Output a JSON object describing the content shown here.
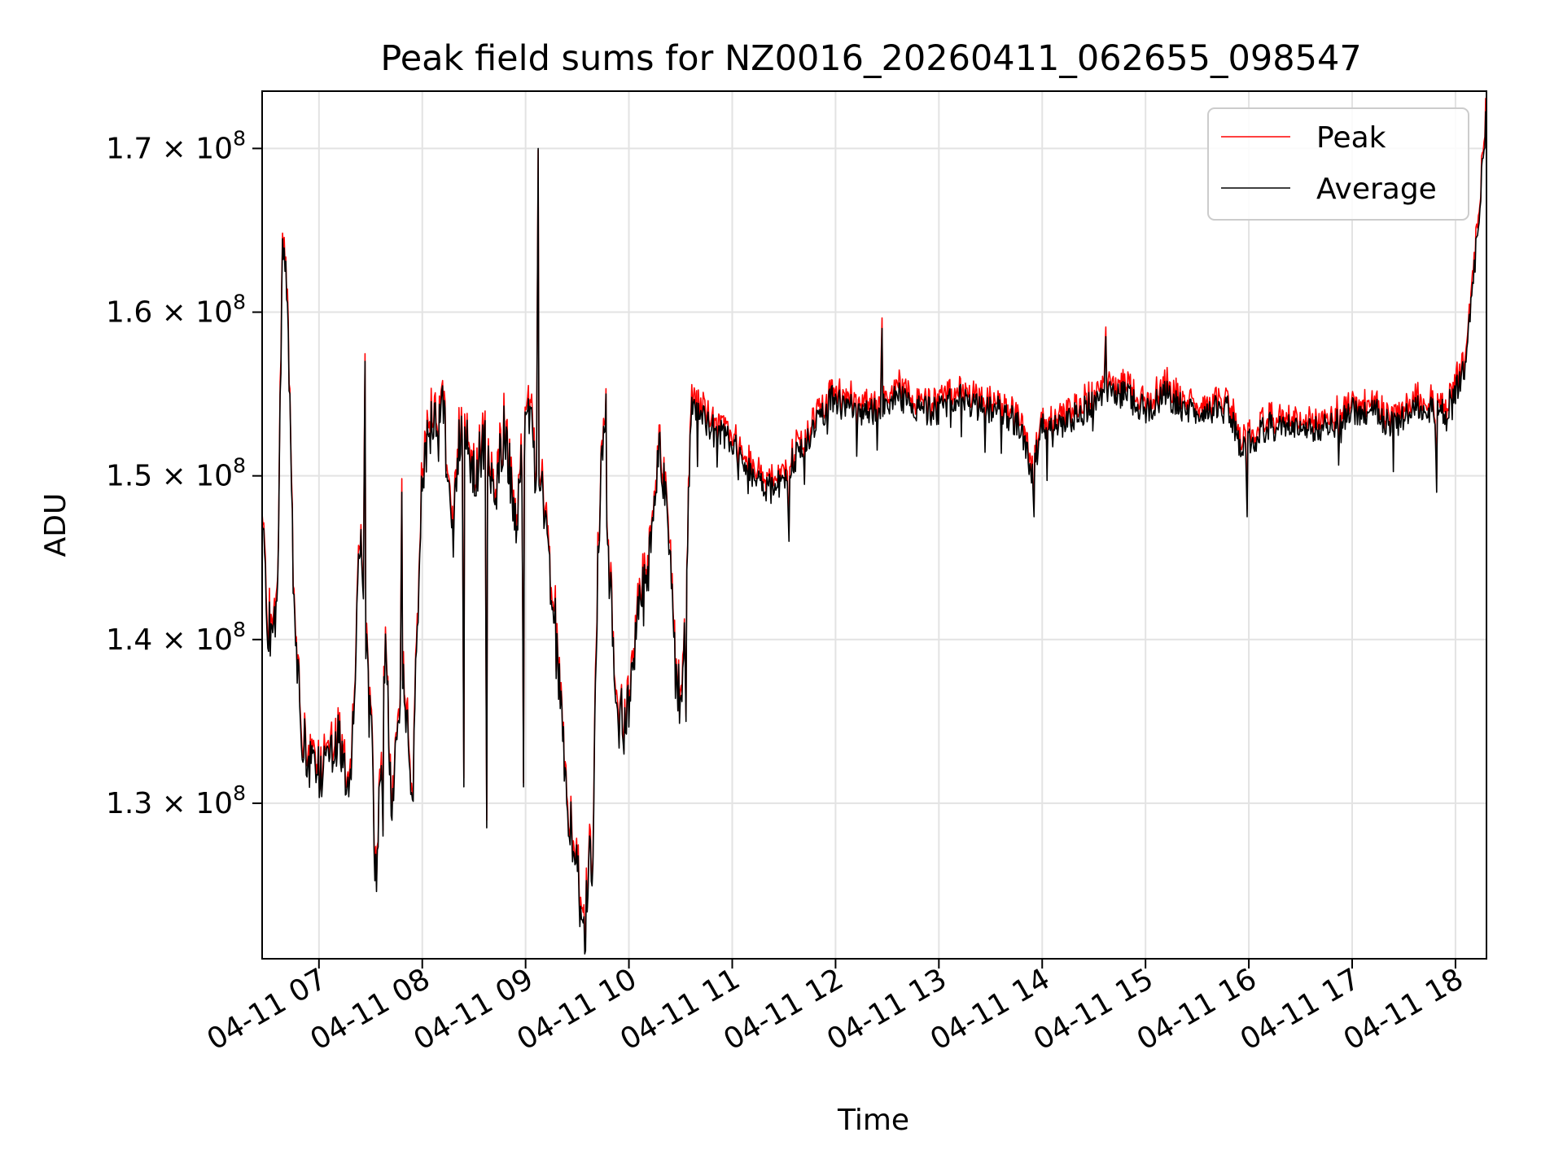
{
  "chart_data": {
    "type": "line",
    "title": "Peak field sums for NZ0016_20260411_062655_098547",
    "xlabel": "Time",
    "ylabel": "ADU",
    "xlim": [
      6.45,
      18.3
    ],
    "ylim": [
      120500000.0,
      173500000.0
    ],
    "grid": true,
    "legend_position": "top-right",
    "x_ticks": [
      {
        "value": 7,
        "label": "04-11 07"
      },
      {
        "value": 8,
        "label": "04-11 08"
      },
      {
        "value": 9,
        "label": "04-11 09"
      },
      {
        "value": 10,
        "label": "04-11 10"
      },
      {
        "value": 11,
        "label": "04-11 11"
      },
      {
        "value": 12,
        "label": "04-11 12"
      },
      {
        "value": 13,
        "label": "04-11 13"
      },
      {
        "value": 14,
        "label": "04-11 14"
      },
      {
        "value": 15,
        "label": "04-11 15"
      },
      {
        "value": 16,
        "label": "04-11 16"
      },
      {
        "value": 17,
        "label": "04-11 17"
      },
      {
        "value": 18,
        "label": "04-11 18"
      }
    ],
    "y_ticks": [
      {
        "value": 130000000,
        "mantissa": "1.3",
        "base": "× 10",
        "exp": "8"
      },
      {
        "value": 140000000,
        "mantissa": "1.4",
        "base": "× 10",
        "exp": "8"
      },
      {
        "value": 150000000,
        "mantissa": "1.5",
        "base": "× 10",
        "exp": "8"
      },
      {
        "value": 160000000,
        "mantissa": "1.6",
        "base": "× 10",
        "exp": "8"
      },
      {
        "value": 170000000,
        "mantissa": "1.7",
        "base": "× 10",
        "exp": "8"
      }
    ],
    "series": [
      {
        "name": "Peak",
        "color": "#ff0000",
        "offset": 600000.0
      },
      {
        "name": "Average",
        "color": "#000000",
        "offset": 0
      }
    ],
    "profile_x": [
      6.45,
      6.5,
      6.55,
      6.6,
      6.65,
      6.7,
      6.75,
      6.8,
      6.85,
      6.9,
      7.0,
      7.1,
      7.2,
      7.3,
      7.4,
      7.5,
      7.55,
      7.6,
      7.65,
      7.7,
      7.8,
      7.9,
      8.0,
      8.1,
      8.2,
      8.3,
      8.35,
      8.4,
      8.5,
      8.6,
      8.7,
      8.8,
      8.9,
      9.0,
      9.05,
      9.1,
      9.15,
      9.2,
      9.3,
      9.4,
      9.5,
      9.55,
      9.6,
      9.65,
      9.7,
      9.75,
      9.8,
      9.9,
      10.0,
      10.1,
      10.2,
      10.3,
      10.4,
      10.45,
      10.5,
      10.55,
      10.6,
      10.8,
      11.0,
      11.2,
      11.4,
      11.6,
      11.8,
      12.0,
      12.2,
      12.4,
      12.6,
      12.8,
      13.0,
      13.2,
      13.4,
      13.6,
      13.8,
      13.9,
      14.0,
      14.2,
      14.4,
      14.6,
      14.8,
      15.0,
      15.2,
      15.4,
      15.6,
      15.8,
      15.9,
      16.0,
      16.2,
      16.4,
      16.6,
      16.8,
      17.0,
      17.2,
      17.4,
      17.6,
      17.8,
      17.9,
      18.0,
      18.1,
      18.2,
      18.3
    ],
    "profile_y": [
      148,
      141,
      140,
      143,
      165,
      160,
      144,
      137,
      134,
      132,
      132,
      132,
      134,
      130,
      147,
      136,
      125,
      132,
      140,
      129,
      138,
      131,
      150,
      154,
      154,
      146,
      152,
      153,
      150,
      152,
      149,
      153,
      147,
      153,
      153,
      150,
      151,
      146,
      140,
      130,
      126,
      122,
      125,
      127,
      145,
      153,
      145,
      135,
      136,
      142,
      145,
      152,
      145,
      138,
      136,
      143,
      154,
      153,
      152,
      150,
      149,
      151,
      153,
      155,
      154,
      154,
      155,
      154,
      154,
      155,
      154,
      154,
      153,
      150,
      153,
      153,
      154,
      155,
      155,
      154,
      155,
      154,
      154,
      154,
      152,
      152,
      153,
      153,
      153,
      153,
      154,
      154,
      153,
      154,
      154,
      154,
      155,
      157,
      164,
      172
    ],
    "spikes": [
      {
        "x": 7.45,
        "y": 157
      },
      {
        "x": 7.62,
        "y": 128
      },
      {
        "x": 7.8,
        "y": 149
      },
      {
        "x": 8.4,
        "y": 131
      },
      {
        "x": 8.62,
        "y": 128.5
      },
      {
        "x": 8.98,
        "y": 131
      },
      {
        "x": 9.12,
        "y": 170
      },
      {
        "x": 9.58,
        "y": 121
      },
      {
        "x": 9.62,
        "y": 128
      },
      {
        "x": 9.78,
        "y": 155
      },
      {
        "x": 9.95,
        "y": 133
      },
      {
        "x": 10.55,
        "y": 135
      },
      {
        "x": 11.55,
        "y": 146
      },
      {
        "x": 12.45,
        "y": 159
      },
      {
        "x": 13.92,
        "y": 147.5
      },
      {
        "x": 14.62,
        "y": 158.5
      },
      {
        "x": 15.98,
        "y": 147.5
      },
      {
        "x": 17.82,
        "y": 149
      }
    ]
  },
  "legend": {
    "peak_label": "Peak",
    "average_label": "Average",
    "peak_color": "#ff0000",
    "average_color": "#000000"
  }
}
